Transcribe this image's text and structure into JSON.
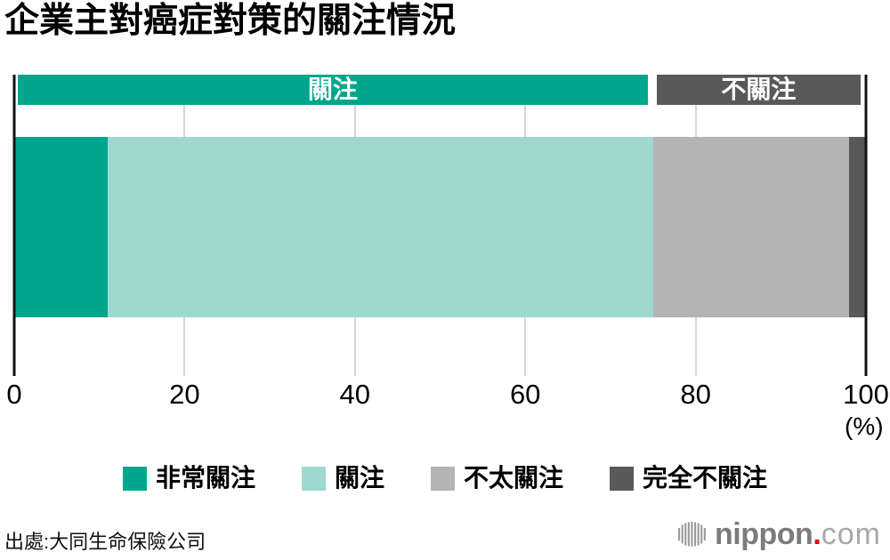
{
  "chart_data": {
    "type": "bar",
    "orientation": "horizontal-stacked",
    "title": "企業主對癌症對策的關注情況",
    "categories": [
      "非常關注",
      "關注",
      "不太關注",
      "完全不關注"
    ],
    "values": [
      11,
      64,
      23,
      2
    ],
    "colors": [
      "#00a68c",
      "#9fd8d0",
      "#b4b4b4",
      "#595959"
    ],
    "xlim": [
      0,
      100
    ],
    "xticks": [
      0,
      20,
      40,
      60,
      80,
      100
    ],
    "unit_label": "(%)",
    "grid": true,
    "legend_position": "bottom-center",
    "group_headers": [
      {
        "label": "關注",
        "start": 0,
        "end": 75,
        "color": "#00a68c",
        "text_color": "#ffffff"
      },
      {
        "label": "不關注",
        "start": 75,
        "end": 100,
        "color": "#595959",
        "text_color": "#ffffff"
      }
    ]
  },
  "footer": {
    "source": "出處:大同生命保險公司",
    "logo": {
      "bold": "nippon",
      "dot": ".",
      "light": "com",
      "dot_color": "#e60012",
      "icon": "nippon-soundbar-mark",
      "icon_color": "#9a9a9a"
    }
  }
}
